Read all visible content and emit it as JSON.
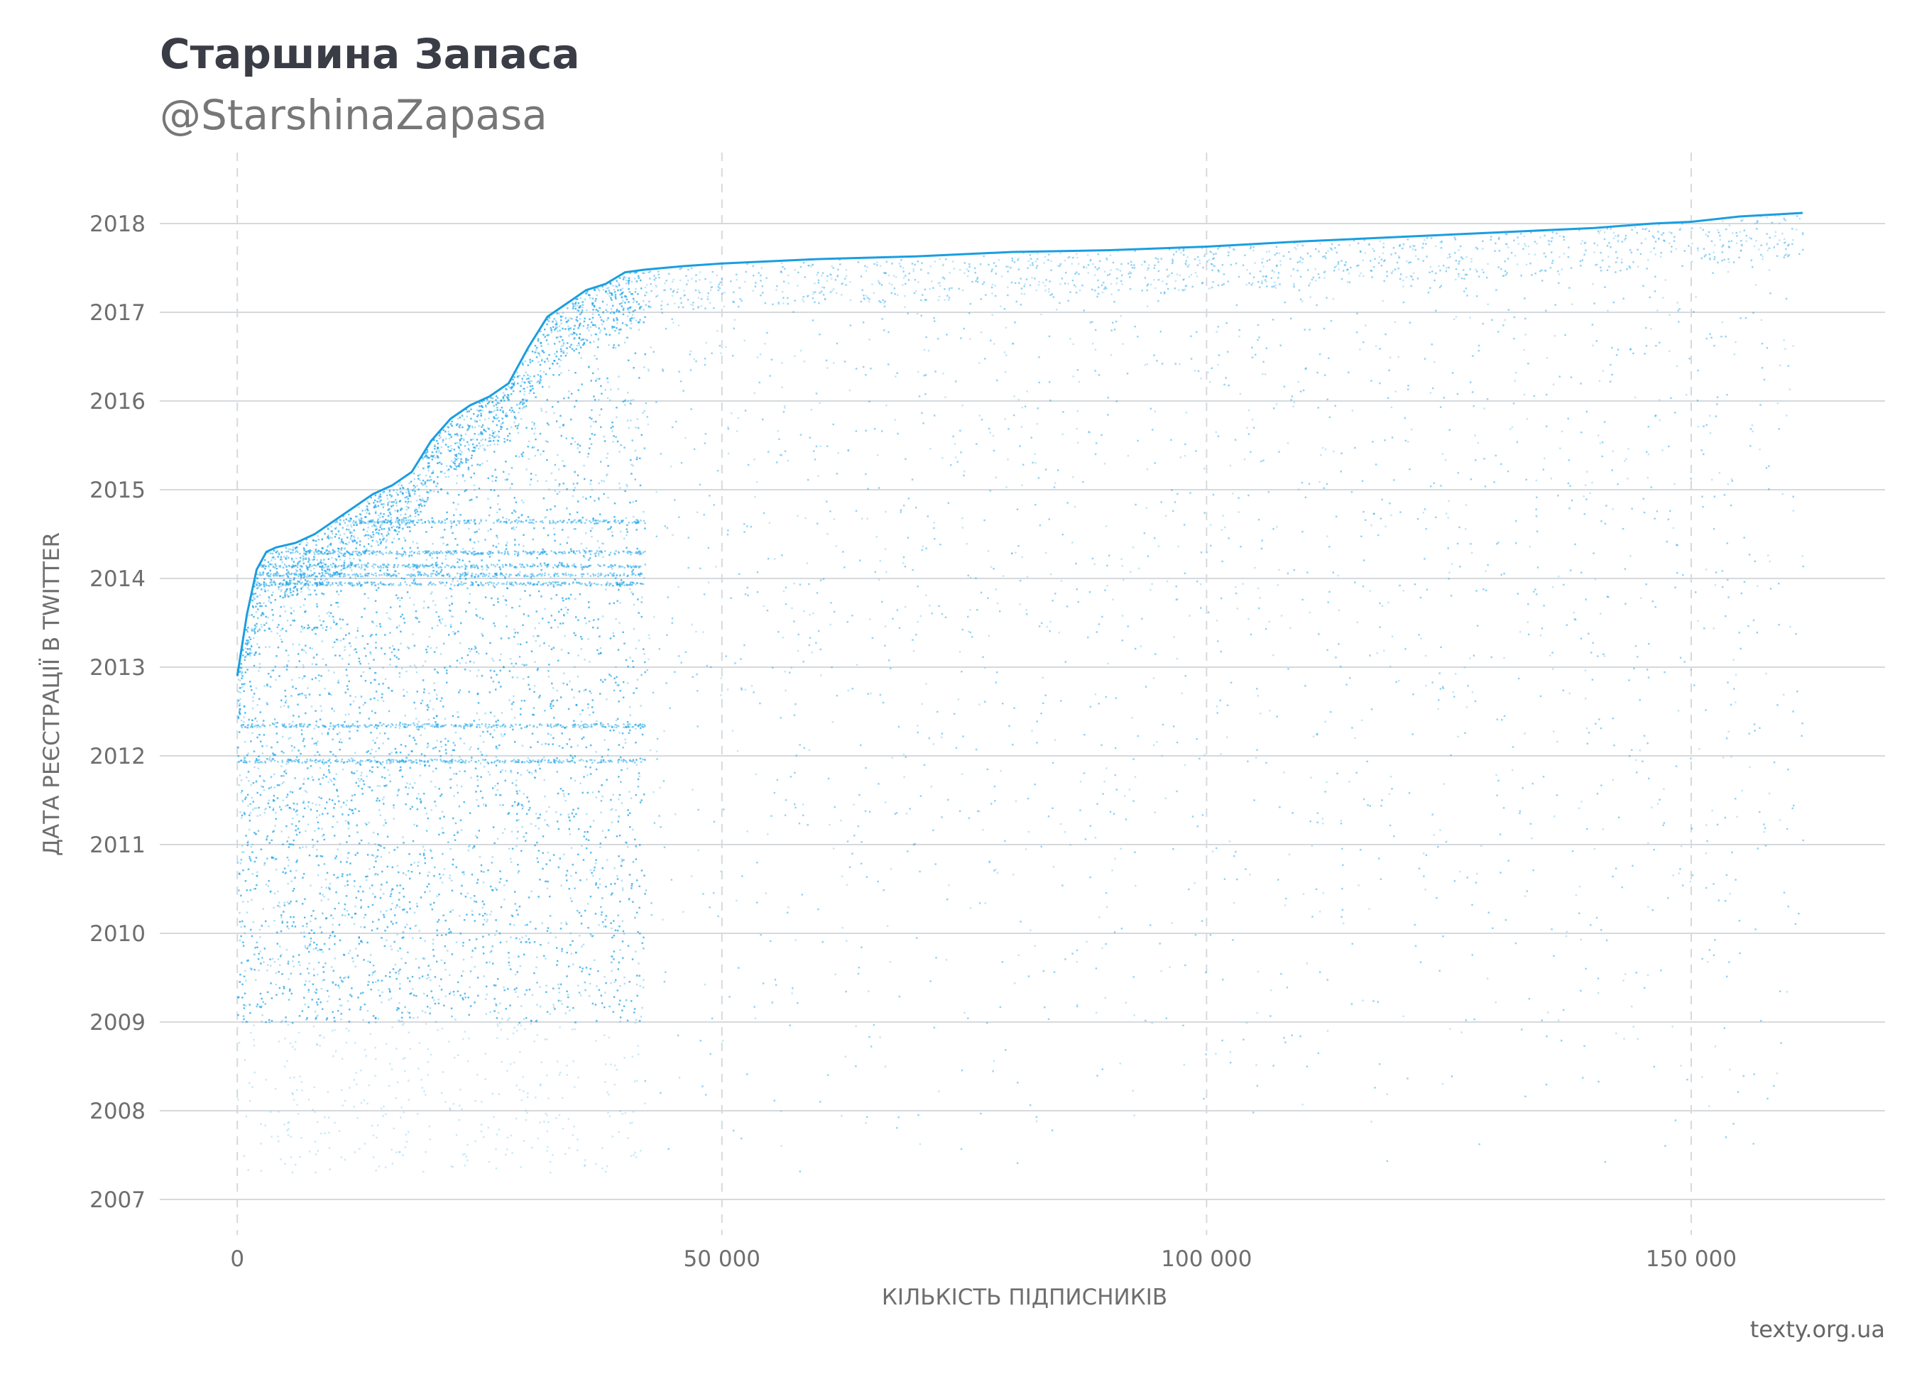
{
  "header": {
    "title": "Старшина Запаса",
    "subtitle": "@StarshinaZapasa"
  },
  "footer": {
    "source": "texty.org.ua"
  },
  "chart_data": {
    "type": "scatter",
    "xlabel": "КІЛЬКІСТЬ ПІДПИСНИКІВ",
    "ylabel": "ДАТА РЕЄСТРАЦІЇ В TWITTER",
    "xlim": [
      -8000,
      170000
    ],
    "ylim": [
      2006.6,
      2018.8
    ],
    "x_ticks": [
      0,
      50000,
      100000,
      150000
    ],
    "x_tick_labels": [
      "0",
      "50 000",
      "100 000",
      "150 000"
    ],
    "y_ticks": [
      2007,
      2008,
      2009,
      2010,
      2011,
      2012,
      2013,
      2014,
      2015,
      2016,
      2017,
      2018
    ],
    "y_tick_labels": [
      "2007",
      "2008",
      "2009",
      "2010",
      "2011",
      "2012",
      "2013",
      "2014",
      "2015",
      "2016",
      "2017",
      "2018"
    ],
    "grid": {
      "horizontal": "solid",
      "vertical": "dashed"
    },
    "point_color": "#1aa3e8",
    "frontier_color": "#1a9ee0",
    "frontier": {
      "name": "",
      "x": [
        0,
        1000,
        2000,
        3000,
        4000,
        6000,
        8000,
        10000,
        12000,
        14000,
        16000,
        18000,
        20000,
        22000,
        24000,
        26000,
        28000,
        30000,
        32000,
        34000,
        36000,
        38000,
        40000,
        42000,
        46000,
        50000,
        60000,
        70000,
        80000,
        90000,
        100000,
        110000,
        120000,
        130000,
        140000,
        146000,
        150000,
        155000,
        161500
      ],
      "y": [
        2012.9,
        2013.6,
        2014.1,
        2014.3,
        2014.35,
        2014.4,
        2014.5,
        2014.65,
        2014.8,
        2014.95,
        2015.05,
        2015.2,
        2015.55,
        2015.8,
        2015.95,
        2016.05,
        2016.2,
        2016.6,
        2016.95,
        2017.1,
        2017.25,
        2017.32,
        2017.45,
        2017.48,
        2017.52,
        2017.55,
        2017.6,
        2017.63,
        2017.68,
        2017.7,
        2017.74,
        2017.8,
        2017.85,
        2017.9,
        2017.95,
        2018.0,
        2018.02,
        2018.08,
        2018.12
      ]
    },
    "dense_region": {
      "x_max": 42000,
      "y_min": 2009.0
    },
    "sparse_region": {
      "x_min": 42000,
      "x_max": 161500,
      "y_min": 2007.3
    },
    "bands": [
      2011.95,
      2012.35,
      2013.95,
      2014.05,
      2014.15,
      2014.3,
      2014.65
    ]
  }
}
